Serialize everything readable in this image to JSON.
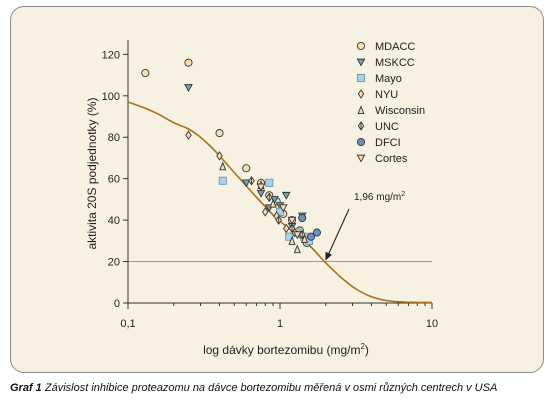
{
  "chart_data": {
    "type": "scatter",
    "x_scale": "log",
    "xlim": [
      0.1,
      10
    ],
    "ylim": [
      0,
      125
    ],
    "xlabel": "log dávky bortezomibu (mg/m",
    "xlabel_sup": "2",
    "xlabel_end": ")",
    "ylabel": "aktivita 20S podjednotky (%)",
    "x_ticks": [
      {
        "value": 0.1,
        "label": "0,1"
      },
      {
        "value": 1,
        "label": "1"
      },
      {
        "value": 10,
        "label": "10"
      }
    ],
    "y_ticks": [
      {
        "value": 0,
        "label": "0"
      },
      {
        "value": 20,
        "label": "20"
      },
      {
        "value": 40,
        "label": "40"
      },
      {
        "value": 60,
        "label": "60"
      },
      {
        "value": 80,
        "label": "80"
      },
      {
        "value": 100,
        "label": "100"
      },
      {
        "value": 120,
        "label": "120"
      }
    ],
    "reference_line": {
      "y": 20
    },
    "annotation": {
      "text": "1,96 mg/m",
      "sup": "2",
      "x": 1.96,
      "y": 20
    },
    "legend_position": "top-right",
    "colors": {
      "curve": "#a8701e",
      "reference": "#9a9a9a",
      "marker_stroke": "#333333"
    },
    "fit_curve": {
      "x": [
        0.1,
        0.13,
        0.16,
        0.2,
        0.25,
        0.3,
        0.35,
        0.4,
        0.5,
        0.6,
        0.7,
        0.8,
        0.9,
        1.0,
        1.1,
        1.2,
        1.35,
        1.5,
        1.7,
        1.96,
        2.3,
        2.7,
        3.2,
        4.0,
        5.0,
        6.5,
        8.0,
        10.0
      ],
      "y": [
        97,
        94,
        91,
        87,
        84,
        80,
        75.5,
        71,
        63,
        56.5,
        51,
        46.5,
        42.5,
        39.5,
        37,
        35,
        31.5,
        29,
        25,
        20,
        15,
        10.5,
        6.5,
        3,
        1.2,
        0.5,
        0.3,
        0.3
      ]
    },
    "series": [
      {
        "name": "MDACC",
        "marker": "circle-open",
        "color": "#f6ddb4",
        "points": [
          [
            0.13,
            111
          ],
          [
            0.25,
            116
          ],
          [
            0.4,
            82
          ],
          [
            0.6,
            65
          ],
          [
            0.75,
            58
          ],
          [
            0.85,
            52
          ],
          [
            0.95,
            49
          ],
          [
            1.05,
            43
          ],
          [
            1.2,
            40
          ],
          [
            1.35,
            35
          ],
          [
            1.5,
            29
          ]
        ]
      },
      {
        "name": "MSKCC",
        "marker": "triangle-down-filled",
        "color": "#6aa8b8",
        "points": [
          [
            0.25,
            104
          ],
          [
            0.6,
            58
          ],
          [
            0.75,
            53
          ],
          [
            0.85,
            46
          ],
          [
            0.92,
            50
          ],
          [
            1.0,
            47
          ],
          [
            1.1,
            52
          ],
          [
            1.2,
            37
          ],
          [
            1.4,
            42
          ]
        ]
      },
      {
        "name": "Mayo",
        "marker": "square",
        "color": "#a8d2e6",
        "points": [
          [
            0.42,
            59
          ],
          [
            0.85,
            58
          ],
          [
            1.0,
            44
          ],
          [
            1.15,
            32
          ],
          [
            1.3,
            34
          ],
          [
            1.45,
            32
          ],
          [
            1.55,
            30
          ]
        ]
      },
      {
        "name": "NYU",
        "marker": "diamond-open",
        "color": "#f6ddb4",
        "points": [
          [
            0.25,
            81
          ],
          [
            0.4,
            71
          ],
          [
            0.8,
            44
          ],
          [
            0.95,
            42
          ],
          [
            1.1,
            36
          ],
          [
            1.25,
            34
          ]
        ]
      },
      {
        "name": "Wisconsin",
        "marker": "triangle-up-open",
        "color": "#f6ddb4",
        "points": [
          [
            0.42,
            66
          ],
          [
            0.75,
            57
          ],
          [
            0.9,
            48
          ],
          [
            1.2,
            30
          ],
          [
            1.3,
            26
          ],
          [
            1.45,
            31
          ]
        ]
      },
      {
        "name": "UNC",
        "marker": "diamond-half",
        "color": "#f6ddb4",
        "points": [
          [
            0.65,
            59
          ],
          [
            0.85,
            51
          ],
          [
            0.98,
            40
          ],
          [
            1.2,
            36
          ],
          [
            1.4,
            33
          ]
        ]
      },
      {
        "name": "DFCI",
        "marker": "circle-filled",
        "color": "#6f8fc0",
        "points": [
          [
            1.4,
            41
          ],
          [
            1.6,
            32
          ],
          [
            1.75,
            34
          ]
        ]
      },
      {
        "name": "Cortes",
        "marker": "triangle-down-open",
        "color": "#f6ddb4",
        "points": [
          [
            0.75,
            56
          ],
          [
            1.05,
            46
          ],
          [
            1.2,
            40
          ],
          [
            1.3,
            33
          ]
        ]
      }
    ]
  },
  "caption": {
    "label": "Graf 1",
    "text": "Závislost inhibice proteazomu na dávce bortezomibu měřená v osmi různých centrech v USA"
  }
}
